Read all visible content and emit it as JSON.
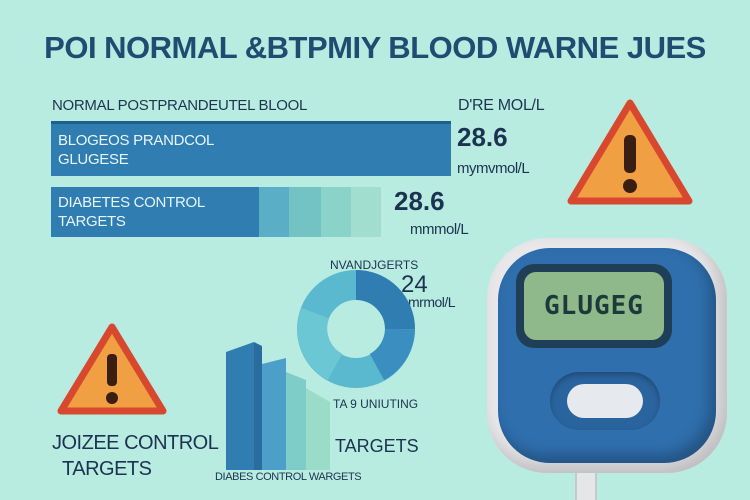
{
  "title": "POI NORMAL &BTPMIY BLOOD WARNE JUES",
  "header_left": "NORMAL POSTPRANDEUTEL BLOOL",
  "header_right": "D'RE MOL/L",
  "bar1": {
    "line1": "BLOGEOS PRANDCOL",
    "line2": "GLUGESE",
    "value": "28.6",
    "unit": "mymvmol/L",
    "fill_fraction": 1.0
  },
  "bar2": {
    "line1": "DIABETES CONTROL",
    "line2": "TARGETS",
    "value": "28.6",
    "unit": "mmmol/L",
    "fill_fraction": 0.82
  },
  "donut": {
    "label": "NVANDJGERTS",
    "value": "24",
    "unit": "mrmol/L",
    "caption": "TA 9 UNIUTING"
  },
  "targets_label": "TARGETS",
  "bottom_left": {
    "line1": "JOIZEE CONTROL",
    "line2": "TARGETS"
  },
  "bottom_caption": "DIABES CONTROL WARGETS",
  "meter": {
    "display_text": "GLUGEG"
  },
  "colors": {
    "background": "#b9ece0",
    "bar_dark": "#2f7db1",
    "bar_light": "#7fd0c6",
    "warning": "#f0a043",
    "warning_border": "#d8482e",
    "meter_blue": "#2f6fae",
    "meter_screen": "#8fb98a"
  },
  "icons": [
    "warning-icon",
    "glucose-meter-icon",
    "donut-chart-icon"
  ]
}
